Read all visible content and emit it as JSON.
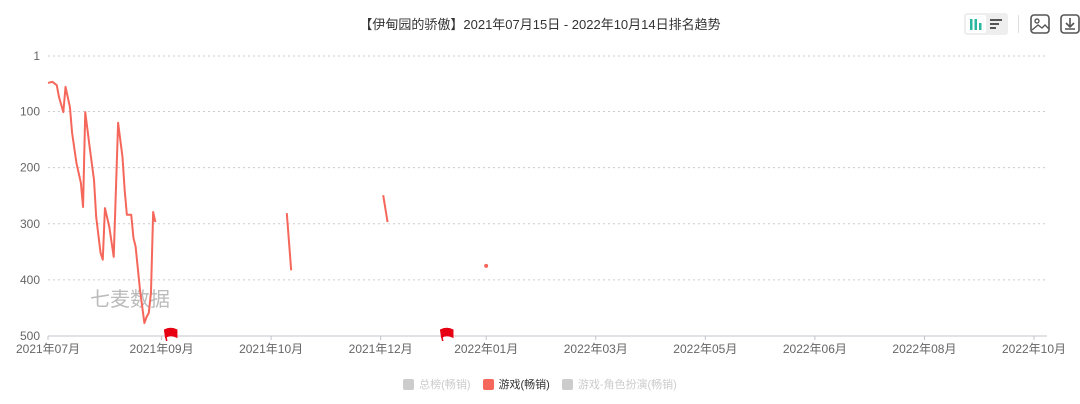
{
  "title": "【伊甸园的骄傲】2021年07月15日 - 2022年10月14日排名趋势",
  "toolbar": {
    "icons": [
      "bar-chart-icon",
      "list-icon",
      "image-download-icon",
      "download-icon"
    ]
  },
  "watermark": "七麦数据",
  "legend": [
    {
      "label": "总榜(畅销)",
      "color": "#cccccc",
      "active": false
    },
    {
      "label": "游戏(畅销)",
      "color": "#f5675a",
      "active": true
    },
    {
      "label": "游戏-角色扮演(畅销)",
      "color": "#cccccc",
      "active": false
    }
  ],
  "chart_data": {
    "type": "line",
    "x_range": [
      "2021-07-15",
      "2022-10-14"
    ],
    "y_inverted": true,
    "ylim": [
      1,
      500
    ],
    "yticks": [
      1,
      100,
      200,
      300,
      400,
      500
    ],
    "xticks": [
      "2021年07月",
      "2021年09月",
      "2021年10月",
      "2021年12月",
      "2022年01月",
      "2022年03月",
      "2022年05月",
      "2022年06月",
      "2022年08月",
      "2022年10月"
    ],
    "grid": "horizontal-dotted",
    "series": [
      {
        "name": "游戏(畅销)",
        "color": "#f5675a",
        "points": [
          [
            "2021-07-15",
            49
          ],
          [
            "2021-07-17",
            47
          ],
          [
            "2021-07-19",
            53
          ],
          [
            "2021-07-20",
            74
          ],
          [
            "2021-07-22",
            101
          ],
          [
            "2021-07-23",
            56
          ],
          [
            "2021-07-25",
            92
          ],
          [
            "2021-07-26",
            138
          ],
          [
            "2021-07-28",
            192
          ],
          [
            "2021-07-30",
            227
          ],
          [
            "2021-07-31",
            270
          ],
          [
            "2021-08-01",
            101
          ],
          [
            "2021-08-03",
            163
          ],
          [
            "2021-08-05",
            222
          ],
          [
            "2021-08-06",
            288
          ],
          [
            "2021-08-08",
            352
          ],
          [
            "2021-08-09",
            364
          ],
          [
            "2021-08-10",
            272
          ],
          [
            "2021-08-12",
            306
          ],
          [
            "2021-08-14",
            359
          ],
          [
            "2021-08-16",
            120
          ],
          [
            "2021-08-18",
            181
          ],
          [
            "2021-08-19",
            240
          ],
          [
            "2021-08-20",
            284
          ],
          [
            "2021-08-22",
            284
          ],
          [
            "2021-08-23",
            325
          ],
          [
            "2021-08-24",
            341
          ],
          [
            "2021-08-26",
            418
          ],
          [
            "2021-08-28",
            477
          ],
          [
            "2021-08-29",
            466
          ],
          [
            "2021-08-30",
            459
          ],
          [
            "2021-08-31",
            423
          ],
          [
            "2021-09-01",
            279
          ],
          [
            "2021-09-02",
            297
          ],
          null,
          [
            "2021-11-01",
            281
          ],
          [
            "2021-11-03",
            383
          ],
          null,
          [
            "2021-12-15",
            249
          ],
          [
            "2021-12-17",
            297
          ],
          null,
          [
            "2022-01-31",
            375
          ]
        ]
      }
    ],
    "flags": [
      "2021-09-09",
      "2022-01-13"
    ],
    "flag_color": "#e60012"
  }
}
